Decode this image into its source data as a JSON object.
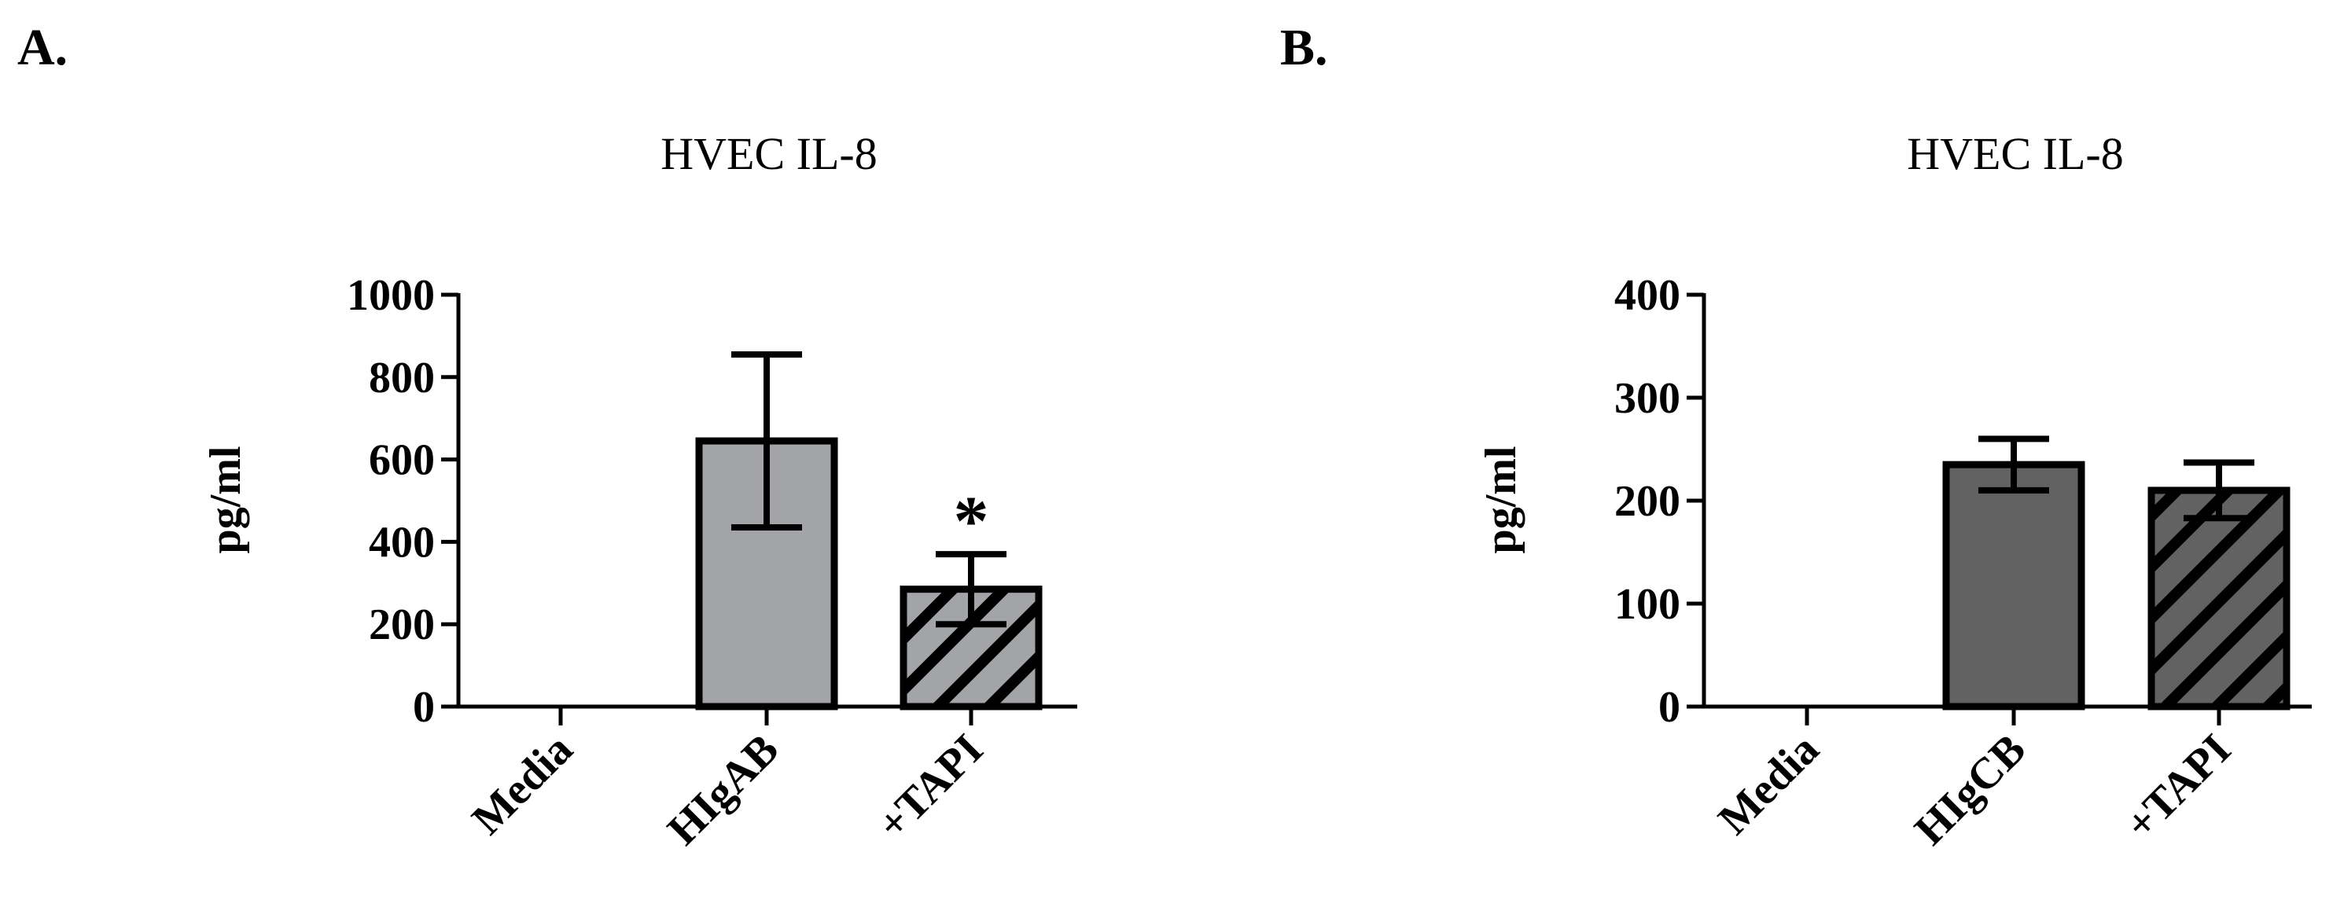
{
  "chart_data": [
    {
      "panel_label": "A.",
      "type": "bar",
      "title": "HVEC IL-8",
      "xlabel": "",
      "ylabel": "pg/ml",
      "ylim": [
        0,
        1000
      ],
      "yticks": [
        0,
        200,
        400,
        600,
        800,
        1000
      ],
      "categories": [
        "Media",
        "HIgAB",
        "+TAPI"
      ],
      "values": [
        0,
        645,
        285
      ],
      "error": [
        0,
        210,
        85
      ],
      "colors": [
        "#ffffff",
        "#a3a4a7",
        "#a3a4a7"
      ],
      "hatched": [
        false,
        false,
        true
      ],
      "annotations": [
        {
          "category": "+TAPI",
          "text": "*"
        }
      ],
      "grid": false,
      "legend": "none"
    },
    {
      "panel_label": "B.",
      "type": "bar",
      "title": "HVEC IL-8",
      "xlabel": "",
      "ylabel": "pg/ml",
      "ylim": [
        0,
        400
      ],
      "yticks": [
        0,
        100,
        200,
        300,
        400
      ],
      "categories": [
        "Media",
        "HIgCB",
        "+TAPI"
      ],
      "values": [
        0,
        235,
        210
      ],
      "error": [
        0,
        25,
        27
      ],
      "colors": [
        "#ffffff",
        "#626262",
        "#626262"
      ],
      "hatched": [
        false,
        false,
        true
      ],
      "annotations": [],
      "grid": false,
      "legend": "none"
    }
  ]
}
